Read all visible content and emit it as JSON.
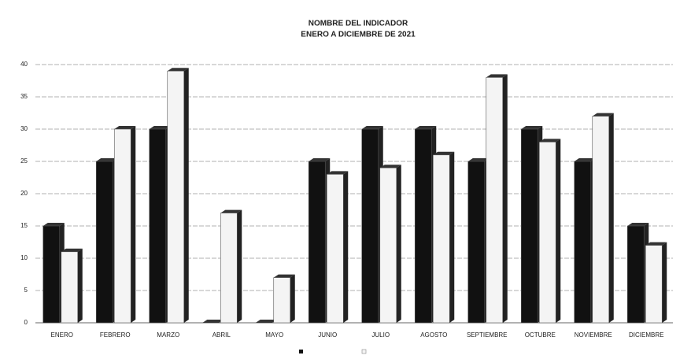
{
  "chart_data": {
    "type": "bar",
    "title": "NOMBRE DEL INDICADOR",
    "subtitle": "ENERO A DICIEMBRE DE 2021",
    "categories": [
      "ENERO",
      "FEBRERO",
      "MARZO",
      "ABRIL",
      "MAYO",
      "JUNIO",
      "JULIO",
      "AGOSTO",
      "SEPTIEMBRE",
      "OCTUBRE",
      "NOVIEMBRE",
      "DICIEMBRE"
    ],
    "series": [
      {
        "color": "#111111",
        "values": [
          15,
          25,
          30,
          0,
          0,
          25,
          30,
          30,
          25,
          30,
          25,
          15
        ]
      },
      {
        "color": "#f4f4f4",
        "values": [
          11,
          30,
          39,
          17,
          7,
          23,
          24,
          26,
          38,
          28,
          32,
          12
        ]
      }
    ],
    "ylim": [
      0,
      40
    ],
    "yticks": [
      0,
      5,
      10,
      15,
      20,
      25,
      30,
      35,
      40
    ],
    "grid": true
  }
}
